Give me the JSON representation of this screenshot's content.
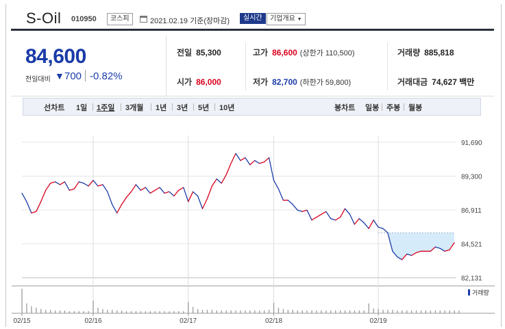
{
  "header": {
    "name": "S-Oil",
    "code": "010950",
    "market": "코스피",
    "date_text": "2021.02.19 기준(장마감)",
    "realtime": "실시간",
    "company_info": "기업개요"
  },
  "price": {
    "current": "84,600",
    "change_label": "전일대비",
    "change_arrow": "▼",
    "change_value": "700",
    "change_pct": "-0.82%"
  },
  "stats": {
    "prev_close_label": "전일",
    "prev_close": "85,300",
    "high_label": "고가",
    "high": "86,600",
    "upper_limit": "(상한가 110,500)",
    "volume_label": "거래량",
    "volume": "885,818",
    "open_label": "시가",
    "open": "86,000",
    "low_label": "저가",
    "low": "82,700",
    "lower_limit": "(하한가 59,800)",
    "amount_label": "거래대금",
    "amount": "74,627 백만"
  },
  "periods": {
    "line_label": "선차트",
    "line_items": [
      "1일",
      "1주일",
      "3개월",
      "1년",
      "3년",
      "5년",
      "10년"
    ],
    "active": "1주일",
    "candle_label": "봉차트",
    "candle_items": [
      "일봉",
      "주봉",
      "월봉"
    ]
  },
  "chart_data": {
    "type": "line",
    "y_ticks": [
      "91,690",
      "89,300",
      "86,911",
      "84,521",
      "82,131"
    ],
    "ylim": [
      82131,
      91690
    ],
    "x_ticks": [
      "02/15",
      "02/16",
      "02/17",
      "02/18",
      "02/19"
    ],
    "volume_label": "거래량",
    "colors": {
      "up": "#d9001b",
      "down": "#1a3ba8",
      "fill": "#d6ebfa"
    },
    "reference_price": 85300,
    "series": [
      {
        "values": [
          88100,
          87500,
          86700,
          86800,
          87500,
          88300,
          88800,
          88900,
          88700,
          88900,
          88300,
          88400,
          88900,
          88800,
          88600,
          89000,
          88600,
          88700,
          88200,
          87300,
          86700,
          87300,
          87800,
          88200,
          88700,
          88300,
          88500,
          88100,
          88300,
          88500,
          88100,
          88200,
          87900,
          88300,
          88500,
          87500,
          88200,
          87900,
          87000,
          87700,
          88600,
          89100,
          88800,
          89400,
          90200,
          90900,
          90400,
          90600,
          90100,
          90400,
          90200,
          90300,
          90600,
          89000,
          88400,
          87600,
          87600,
          87300,
          86900,
          86800,
          86900,
          86200,
          86400,
          86600,
          86800,
          86300,
          86200,
          86400,
          87000,
          86600,
          85900,
          86300,
          86000,
          85600,
          86200,
          85700,
          85600,
          85300,
          84000,
          83600,
          83400,
          83800,
          83700,
          83900,
          84000,
          84000,
          84000,
          84300,
          84200,
          84000,
          84100,
          84600
        ]
      }
    ],
    "volume": [
      35,
      14,
      10,
      8,
      6,
      5,
      5,
      4,
      4,
      4,
      3,
      3,
      3,
      3,
      3,
      18,
      8,
      6,
      5,
      5,
      4,
      4,
      3,
      3,
      3,
      3,
      3,
      3,
      3,
      3,
      3,
      3,
      3,
      3,
      3,
      16,
      9,
      6,
      5,
      5,
      5,
      4,
      4,
      4,
      4,
      4,
      4,
      4,
      4,
      4,
      4,
      4,
      5,
      15,
      8,
      6,
      5,
      5,
      4,
      4,
      4,
      4,
      4,
      4,
      4,
      4,
      4,
      4,
      4,
      4,
      4,
      4,
      4,
      14,
      7,
      6,
      5,
      5,
      5,
      4,
      4,
      4,
      4,
      4,
      4,
      4,
      4,
      4,
      4,
      4,
      4,
      4,
      4
    ]
  }
}
